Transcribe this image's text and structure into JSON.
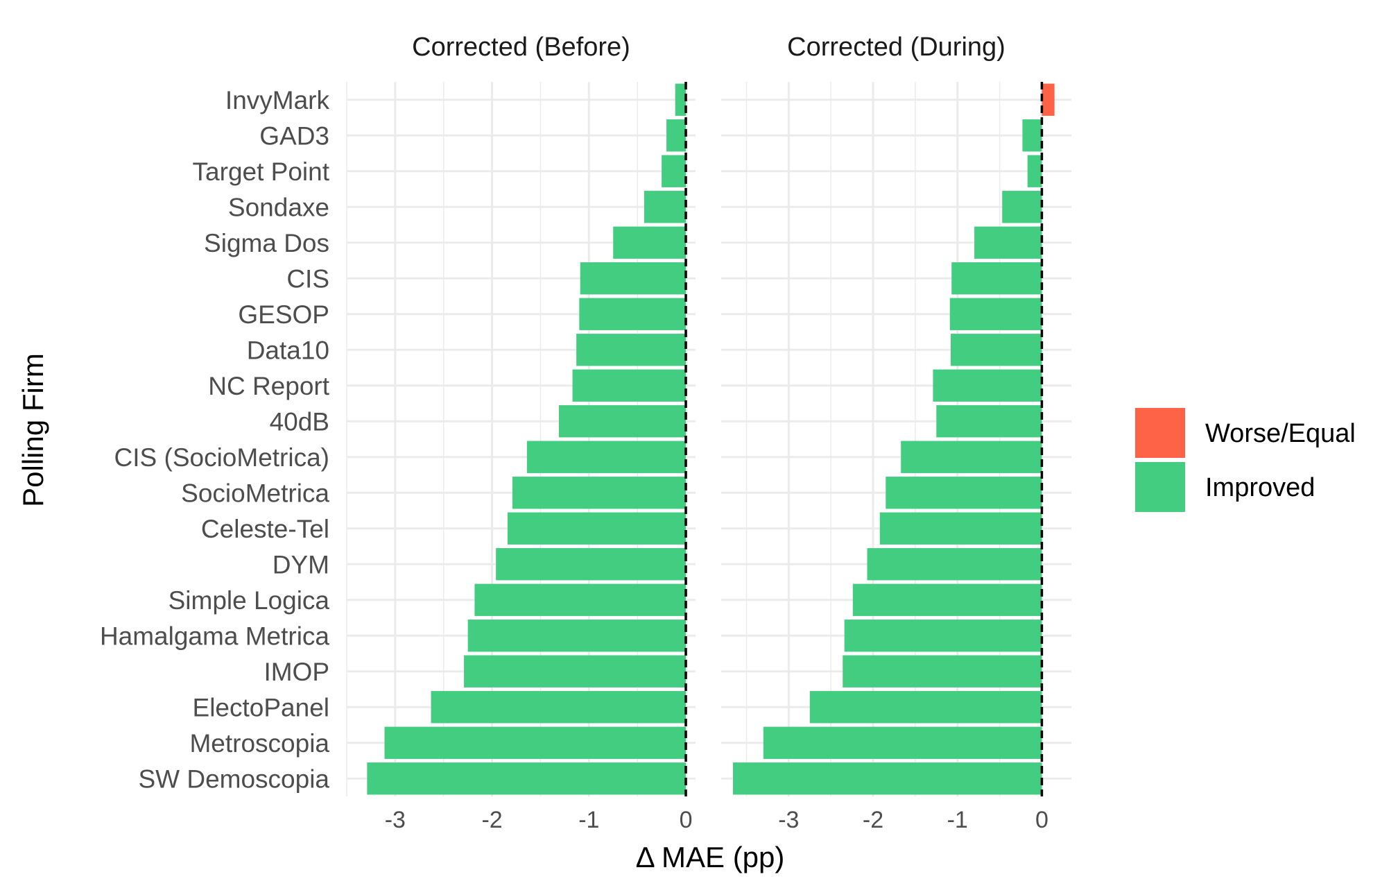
{
  "chart_data": {
    "type": "bar",
    "orientation": "horizontal",
    "xlabel": "Δ MAE (pp)",
    "ylabel": "Polling Firm",
    "categories": [
      "InvyMark",
      "GAD3",
      "Target Point",
      "Sondaxe",
      "Sigma Dos",
      "CIS",
      "GESOP",
      "Data10",
      "NC Report",
      "40dB",
      "CIS (SocioMetrica)",
      "SocioMetrica",
      "Celeste-Tel",
      "DYM",
      "Simple Logica",
      "Hamalgama Metrica",
      "IMOP",
      "ElectoPanel",
      "Metroscopia",
      "SW Demoscopia"
    ],
    "ticks": [
      "-3",
      "-2",
      "-1",
      "0"
    ],
    "grid": true,
    "reference_line": 0,
    "colors": {
      "Worse/Equal": "#ff6347",
      "Improved": "#43cd80",
      "grid": "#ebebeb"
    },
    "legend": {
      "placement": "right",
      "entries": [
        "Worse/Equal",
        "Improved"
      ]
    },
    "panels": [
      {
        "title": "Corrected (Before)",
        "xlim": [
          -3.5,
          0.1
        ],
        "values": [
          -0.11,
          -0.2,
          -0.25,
          -0.43,
          -0.75,
          -1.09,
          -1.1,
          -1.13,
          -1.17,
          -1.31,
          -1.64,
          -1.79,
          -1.84,
          -1.96,
          -2.18,
          -2.25,
          -2.29,
          -2.63,
          -3.11,
          -3.29
        ]
      },
      {
        "title": "Corrected (During)",
        "xlim": [
          -3.8,
          0.35
        ],
        "values": [
          0.15,
          -0.23,
          -0.17,
          -0.47,
          -0.8,
          -1.07,
          -1.09,
          -1.08,
          -1.29,
          -1.25,
          -1.67,
          -1.85,
          -1.92,
          -2.07,
          -2.24,
          -2.34,
          -2.36,
          -2.75,
          -3.3,
          -3.66
        ]
      }
    ]
  }
}
